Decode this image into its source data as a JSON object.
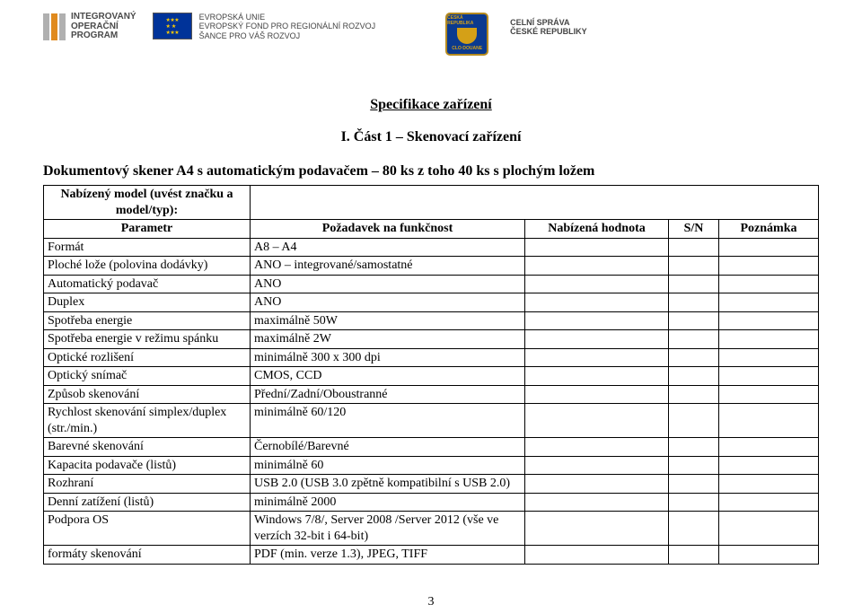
{
  "logos": {
    "iop": {
      "line1": "INTEGROVANÝ",
      "line2": "OPERAČNÍ",
      "line3": "PROGRAM",
      "bar_colors": [
        "#b0b0b0",
        "#e08a1e",
        "#b0b0b0"
      ]
    },
    "eu": {
      "line1": "EVROPSKÁ UNIE",
      "line2": "EVROPSKÝ FOND PRO REGIONÁLNÍ ROZVOJ",
      "line3": "ŠANCE PRO VÁŠ ROZVOJ",
      "flag_bg": "#003399",
      "star_color": "#ffcc00"
    },
    "cr": {
      "top": "ČESKÁ REPUBLIKA",
      "bottom": "CLO·DOUANE",
      "bg": "#0b3a8f",
      "border": "#b58a1f",
      "emblem": "#d4a017"
    },
    "cs": {
      "line1": "CELNÍ SPRÁVA",
      "line2": "ČESKÉ REPUBLIKY"
    }
  },
  "doc_title": "Specifikace zařízení",
  "section_title": "I. Část 1 – Skenovací zařízení",
  "subheading": "Dokumentový skener A4 s automatickým podavačem – 80 ks z toho 40 ks s plochým ložem",
  "table": {
    "head": {
      "model_label_line1": "Nabízený model (uvést značku a",
      "model_label_line2": "model/typ):",
      "parametr": "Parametr",
      "pozadavek": "Požadavek na funkčnost",
      "hodnota": "Nabízená hodnota",
      "sn": "S/N",
      "poznamka": "Poznámka"
    },
    "rows": [
      {
        "param": "Formát",
        "req": "A8 – A4"
      },
      {
        "param": "Ploché lože (polovina dodávky)",
        "req": "ANO – integrované/samostatné"
      },
      {
        "param": "Automatický podavač",
        "req": "ANO"
      },
      {
        "param": "Duplex",
        "req": "ANO"
      },
      {
        "param": "Spotřeba energie",
        "req": "maximálně 50W"
      },
      {
        "param": "Spotřeba energie v režimu spánku",
        "req": "maximálně 2W"
      },
      {
        "param": "Optické rozlišení",
        "req": "minimálně 300 x 300 dpi"
      },
      {
        "param": "Optický snímač",
        "req": "CMOS, CCD"
      },
      {
        "param": "Způsob skenování",
        "req": "Přední/Zadní/Oboustranné"
      },
      {
        "param": "Rychlost skenování simplex/duplex (str./min.)",
        "req": "minimálně 60/120"
      },
      {
        "param": "Barevné skenování",
        "req": "Černobílé/Barevné"
      },
      {
        "param": "Kapacita podavače (listů)",
        "req": "minimálně 60"
      },
      {
        "param": "Rozhraní",
        "req": "USB 2.0  (USB 3.0 zpětně kompatibilní s USB 2.0)"
      },
      {
        "param": "Denní zatížení (listů)",
        "req": "minimálně 2000"
      },
      {
        "param": "Podpora OS",
        "req": "Windows 7/8/, Server 2008 /Server 2012 (vše ve verzích 32-bit i 64-bit)"
      },
      {
        "param": "formáty skenování",
        "req": "PDF (min. verze 1.3), JPEG, TIFF"
      }
    ]
  },
  "page_number": "3"
}
